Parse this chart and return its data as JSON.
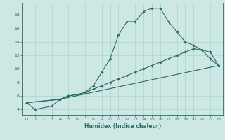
{
  "xlabel": "Humidex (Indice chaleur)",
  "ylabel": "",
  "background_color": "#cde8e4",
  "grid_color": "#b0d8d4",
  "line_color": "#2a6b60",
  "xlim": [
    -0.5,
    23.5
  ],
  "ylim": [
    3.2,
    19.8
  ],
  "yticks": [
    4,
    6,
    8,
    10,
    12,
    14,
    16,
    18
  ],
  "xticks": [
    0,
    1,
    2,
    3,
    4,
    5,
    6,
    7,
    8,
    9,
    10,
    11,
    12,
    13,
    14,
    15,
    16,
    17,
    18,
    19,
    20,
    21,
    22,
    23
  ],
  "lines": [
    {
      "x": [
        0,
        1,
        3,
        4,
        5,
        6,
        7,
        8,
        9,
        10,
        11,
        12,
        13,
        14,
        15,
        16,
        17,
        18,
        19,
        20,
        21,
        22,
        23
      ],
      "y": [
        5.0,
        4.0,
        4.5,
        5.5,
        6.0,
        6.2,
        6.5,
        7.5,
        9.5,
        11.5,
        15.0,
        17.0,
        17.0,
        18.5,
        19.0,
        19.0,
        17.0,
        15.5,
        14.0,
        13.5,
        12.8,
        11.5,
        10.5
      ]
    },
    {
      "x": [
        0,
        4,
        5,
        6,
        7,
        8,
        9,
        10,
        11,
        12,
        13,
        14,
        15,
        16,
        17,
        18,
        19,
        20,
        21,
        22,
        23
      ],
      "y": [
        5.0,
        5.5,
        6.0,
        6.2,
        6.5,
        7.0,
        7.5,
        8.0,
        8.5,
        9.0,
        9.5,
        10.0,
        10.5,
        11.0,
        11.5,
        12.0,
        12.5,
        13.0,
        12.8,
        12.5,
        10.5
      ]
    },
    {
      "x": [
        0,
        4,
        23
      ],
      "y": [
        5.0,
        5.5,
        10.5
      ]
    }
  ]
}
